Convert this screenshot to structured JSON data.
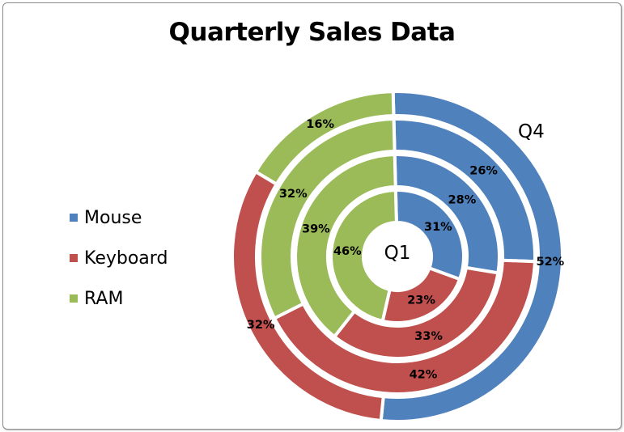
{
  "chart_data": {
    "type": "donut",
    "title": "Quarterly Sales Data",
    "categories": [
      "Mouse",
      "Keyboard",
      "RAM"
    ],
    "colors": [
      "#4f81bd",
      "#c0504d",
      "#9bbb59"
    ],
    "legend_position": "left",
    "rings": [
      {
        "name": "Q1",
        "values": [
          31,
          23,
          46
        ],
        "labels": [
          "31%",
          "23%",
          "46%"
        ]
      },
      {
        "name": "",
        "values": [
          28,
          33,
          39
        ],
        "labels": [
          "28%",
          "33%",
          "39%"
        ]
      },
      {
        "name": "",
        "values": [
          26,
          42,
          32
        ],
        "labels": [
          "26%",
          "42%",
          "32%"
        ]
      },
      {
        "name": "Q4",
        "values": [
          52,
          32,
          16
        ],
        "labels": [
          "52%",
          "32%",
          "16%"
        ]
      }
    ]
  },
  "legend": {
    "items": [
      {
        "label": "Mouse",
        "color": "#4f81bd"
      },
      {
        "label": "Keyboard",
        "color": "#c0504d"
      },
      {
        "label": "RAM",
        "color": "#9bbb59"
      }
    ]
  }
}
